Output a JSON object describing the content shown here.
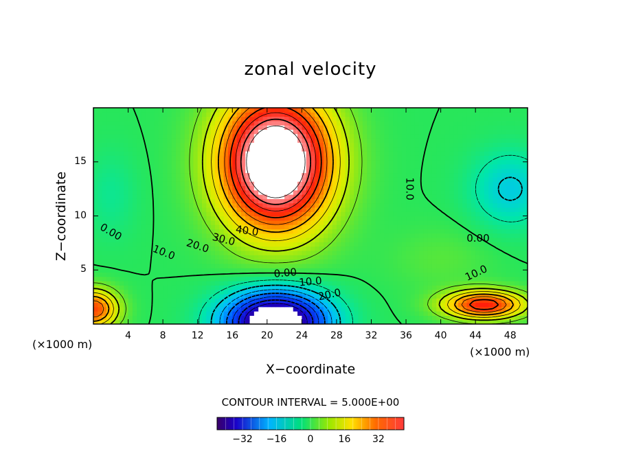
{
  "chart_data": {
    "type": "heatmap",
    "title": "zonal velocity",
    "xlabel": "X−coordinate",
    "ylabel": "Z−coordinate",
    "x_unit_label": "(×1000 m)",
    "xticks": [
      4,
      8,
      12,
      16,
      20,
      24,
      28,
      32,
      36,
      40,
      44,
      48
    ],
    "yticks": [
      5,
      10,
      15
    ],
    "xlim": [
      0,
      50
    ],
    "ylim": [
      0,
      20
    ],
    "contour_interval_text": "CONTOUR INTERVAL = 5.000E+00",
    "colorbar": {
      "ticks": [
        -32,
        -16,
        0,
        16,
        32
      ],
      "range": [
        -44,
        44
      ]
    },
    "contour_labels": [
      {
        "text": "40.0",
        "x": 17.7,
        "y": 8.6
      },
      {
        "text": "30.0",
        "x": 15.0,
        "y": 7.8
      },
      {
        "text": "20.0",
        "x": 12.0,
        "y": 7.2
      },
      {
        "text": "10.0",
        "x": 8.1,
        "y": 6.6
      },
      {
        "text": "0.00",
        "x": 2.0,
        "y": 8.5
      },
      {
        "text": "0.00",
        "x": 22.1,
        "y": 4.7
      },
      {
        "text": "10.0",
        "x": 25.0,
        "y": 3.9
      },
      {
        "text": "20.0",
        "x": 27.2,
        "y": 2.7
      },
      {
        "text": "10.0",
        "x": 36.4,
        "y": 12.5
      },
      {
        "text": "0.00",
        "x": 44.3,
        "y": 7.9
      },
      {
        "text": "10.0",
        "x": 44.1,
        "y": 4.7
      }
    ],
    "blank_regions_note_hidden": false,
    "features": [
      {
        "kind": "jet",
        "peak": 48,
        "x": 20,
        "y": 14
      },
      {
        "kind": "return_flow",
        "peak": -42,
        "x": 21,
        "y": 0.5
      },
      {
        "kind": "low_level_jet_west",
        "peak": 28,
        "x": 0,
        "y": 1.5
      },
      {
        "kind": "low_level_jet_east",
        "peak": 32,
        "x": 45,
        "y": 1.8
      },
      {
        "kind": "minimum_east",
        "peak": -10,
        "x": 48,
        "y": 12.5
      }
    ]
  }
}
